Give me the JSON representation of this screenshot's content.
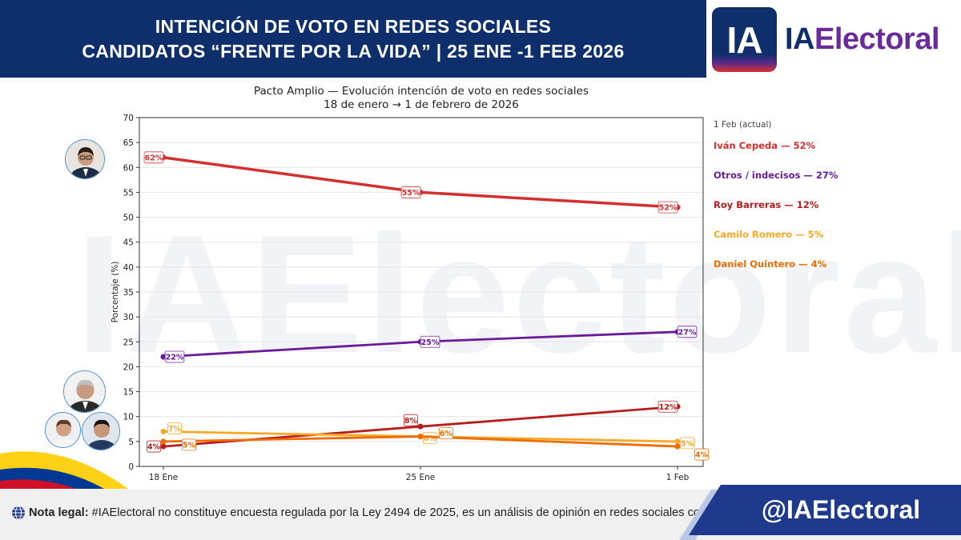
{
  "header": {
    "line1": "INTENCIÓN DE VOTO EN REDES SOCIALES",
    "line2": "CANDIDATOS “FRENTE POR LA VIDA”  | 25 ENE -1 FEB 2026"
  },
  "brand": {
    "logo_text": "IA",
    "name_part1": "IA",
    "name_part2": "Electoral"
  },
  "watermark": "IAElectoral",
  "chart_data": {
    "type": "line",
    "title": "Pacto Amplio — Evolución intención de voto en redes sociales",
    "subtitle": "18 de enero → 1 de febrero de 2026",
    "ylabel": "Porcentaje (%)",
    "xlabel": "",
    "categories": [
      "18 Ene",
      "25 Ene",
      "1 Feb"
    ],
    "ylim": [
      0,
      70
    ],
    "yticks": [
      0,
      5,
      10,
      15,
      20,
      25,
      30,
      35,
      40,
      45,
      50,
      55,
      60,
      65,
      70
    ],
    "grid": true,
    "legend_header": "1 Feb (actual)",
    "series": [
      {
        "name": "Iván Cepeda",
        "legend": "Iván Cepeda — 52%",
        "values": [
          62,
          55,
          52
        ],
        "labels": [
          "62%",
          "55%",
          "52%"
        ],
        "color": "#d32f2f"
      },
      {
        "name": "Otros / indecisos",
        "legend": "Otros / indecisos — 27%",
        "values": [
          22,
          25,
          27
        ],
        "labels": [
          "22%",
          "25%",
          "27%"
        ],
        "color": "#6a1b9a"
      },
      {
        "name": "Roy Barreras",
        "legend": "Roy Barreras — 12%",
        "values": [
          4,
          8,
          12
        ],
        "labels": [
          "4%",
          "8%",
          "12%"
        ],
        "color": "#b71c1c"
      },
      {
        "name": "Camilo Romero",
        "legend": "Camilo Romero — 5%",
        "values": [
          7,
          6,
          5
        ],
        "labels": [
          "7%",
          "6%",
          "5%"
        ],
        "color": "#f9a825"
      },
      {
        "name": "Daniel Quintero",
        "legend": "Daniel Quintero — 4%",
        "values": [
          5,
          6,
          4
        ],
        "labels": [
          "5%",
          "6%",
          "4%"
        ],
        "color": "#ef6c00"
      }
    ]
  },
  "footer": {
    "legal_bold": "Nota legal:",
    "legal_text": "#IAElectoral no constituye encuesta regulada por la Ley 2494 de 2025, es un análisis de opinión en redes sociales con IA.",
    "handle": "@IAElectoral"
  },
  "icons": {
    "globe": "globe-icon",
    "avatars": [
      "candidate-avatar-cepeda",
      "candidate-avatar-barreras",
      "candidate-avatar-romero",
      "candidate-avatar-quintero"
    ]
  }
}
